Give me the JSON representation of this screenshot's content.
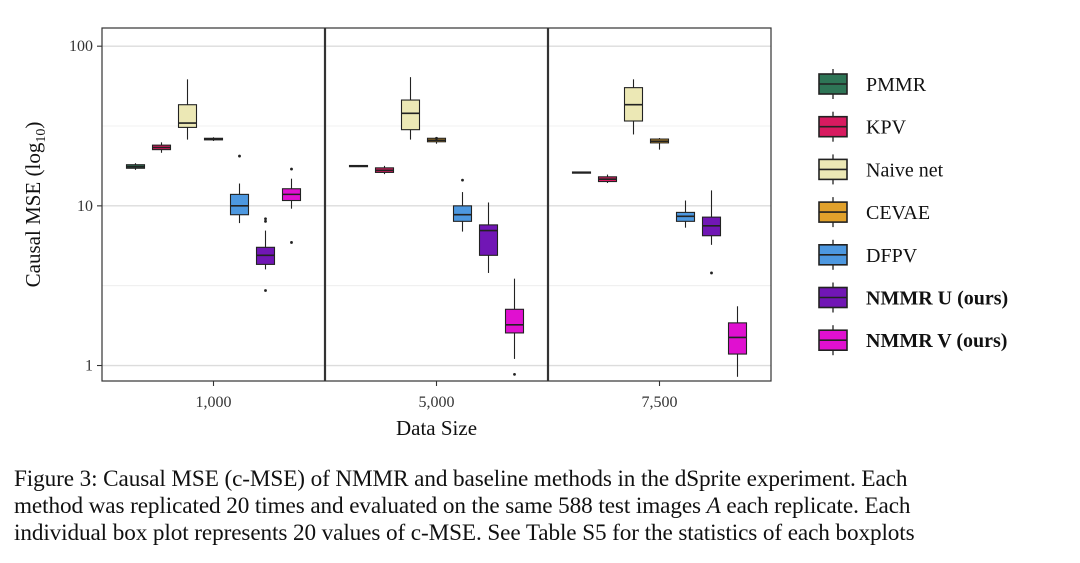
{
  "chart_data": {
    "type": "boxplot",
    "facet_by": "Data Size",
    "facets": [
      "1,000",
      "5,000",
      "7,500"
    ],
    "xlabel": "Data Size",
    "ylabel": "Causal MSE (log10)",
    "ylabel_main": "Causal MSE (log",
    "ylabel_sub": "10",
    "ylabel_close": ")",
    "yscale": "log10",
    "ylim": [
      0.8,
      130
    ],
    "yticks": [
      1,
      10,
      100
    ],
    "ytick_labels": [
      "1",
      "10",
      "100"
    ],
    "legend_position": "right",
    "series": [
      {
        "name": "PMMR",
        "bold": false,
        "color": "#2e7556",
        "boxes": [
          {
            "low": 16.8,
            "q1": 17.2,
            "med": 17.6,
            "q3": 18.1,
            "high": 18.5,
            "outliers": []
          },
          {
            "low": 17.5,
            "q1": 17.6,
            "med": 17.8,
            "q3": 17.9,
            "high": 18.0,
            "outliers": []
          },
          {
            "low": 16.0,
            "q1": 16.1,
            "med": 16.2,
            "q3": 16.3,
            "high": 16.4,
            "outliers": []
          }
        ]
      },
      {
        "name": "KPV",
        "bold": false,
        "color": "#d81b60",
        "boxes": [
          {
            "low": 21.5,
            "q1": 22.5,
            "med": 23.2,
            "q3": 24.0,
            "high": 25.0,
            "outliers": []
          },
          {
            "low": 15.8,
            "q1": 16.2,
            "med": 16.7,
            "q3": 17.3,
            "high": 17.8,
            "outliers": []
          },
          {
            "low": 13.9,
            "q1": 14.2,
            "med": 14.7,
            "q3": 15.2,
            "high": 15.7,
            "outliers": []
          }
        ]
      },
      {
        "name": "Naive net",
        "bold": false,
        "color": "#ece8b5",
        "boxes": [
          {
            "low": 26.0,
            "q1": 31.0,
            "med": 33.0,
            "q3": 43.0,
            "high": 62.0,
            "outliers": []
          },
          {
            "low": 26.0,
            "q1": 30.0,
            "med": 38.0,
            "q3": 46.0,
            "high": 64.0,
            "outliers": []
          },
          {
            "low": 28.0,
            "q1": 34.0,
            "med": 43.0,
            "q3": 55.0,
            "high": 62.0,
            "outliers": []
          }
        ]
      },
      {
        "name": "CEVAE",
        "bold": false,
        "color": "#e1a12b",
        "boxes": [
          {
            "low": 25.5,
            "q1": 25.9,
            "med": 26.2,
            "q3": 26.5,
            "high": 26.9,
            "outliers": []
          },
          {
            "low": 24.5,
            "q1": 25.2,
            "med": 25.8,
            "q3": 26.5,
            "high": 26.8,
            "outliers": [
              26.5
            ]
          },
          {
            "low": 22.5,
            "q1": 24.8,
            "med": 25.4,
            "q3": 26.2,
            "high": 26.6,
            "outliers": []
          }
        ]
      },
      {
        "name": "DFPV",
        "bold": false,
        "color": "#4d98e0",
        "boxes": [
          {
            "low": 7.8,
            "q1": 8.8,
            "med": 10.0,
            "q3": 11.8,
            "high": 13.8,
            "outliers": [
              20.5
            ]
          },
          {
            "low": 6.9,
            "q1": 8.0,
            "med": 8.8,
            "q3": 10.0,
            "high": 12.2,
            "outliers": [
              14.5
            ]
          },
          {
            "low": 7.3,
            "q1": 8.0,
            "med": 8.6,
            "q3": 9.1,
            "high": 10.8,
            "outliers": []
          }
        ]
      },
      {
        "name": "NMMR U (ours)",
        "bold": true,
        "color": "#7116b5",
        "boxes": [
          {
            "low": 4.0,
            "q1": 4.3,
            "med": 4.9,
            "q3": 5.5,
            "high": 7.0,
            "outliers": [
              8.0,
              8.3,
              2.95
            ]
          },
          {
            "low": 3.8,
            "q1": 4.9,
            "med": 7.0,
            "q3": 7.6,
            "high": 10.5,
            "outliers": []
          },
          {
            "low": 5.7,
            "q1": 6.5,
            "med": 7.5,
            "q3": 8.5,
            "high": 12.5,
            "outliers": [
              3.8
            ]
          }
        ]
      },
      {
        "name": "NMMR V (ours)",
        "bold": true,
        "color": "#e010d0",
        "boxes": [
          {
            "low": 9.6,
            "q1": 10.8,
            "med": 11.8,
            "q3": 12.8,
            "high": 14.8,
            "outliers": [
              17.0,
              5.9
            ]
          },
          {
            "low": 1.1,
            "q1": 1.6,
            "med": 1.8,
            "q3": 2.25,
            "high": 3.5,
            "outliers": [
              0.88
            ]
          },
          {
            "low": 0.85,
            "q1": 1.18,
            "med": 1.5,
            "q3": 1.85,
            "high": 2.35,
            "outliers": []
          }
        ]
      }
    ]
  },
  "caption": {
    "line1": "Figure 3: Causal MSE (c-MSE) of NMMR and baseline methods in the dSprite experiment. Each",
    "line2_before": "method was replicated 20 times and evaluated on the same 588 test images ",
    "line2_var": "A",
    "line2_after": " each replicate. Each",
    "line3": "individual box plot represents 20 values of c-MSE. See Table S5 for the statistics of each boxplots"
  }
}
